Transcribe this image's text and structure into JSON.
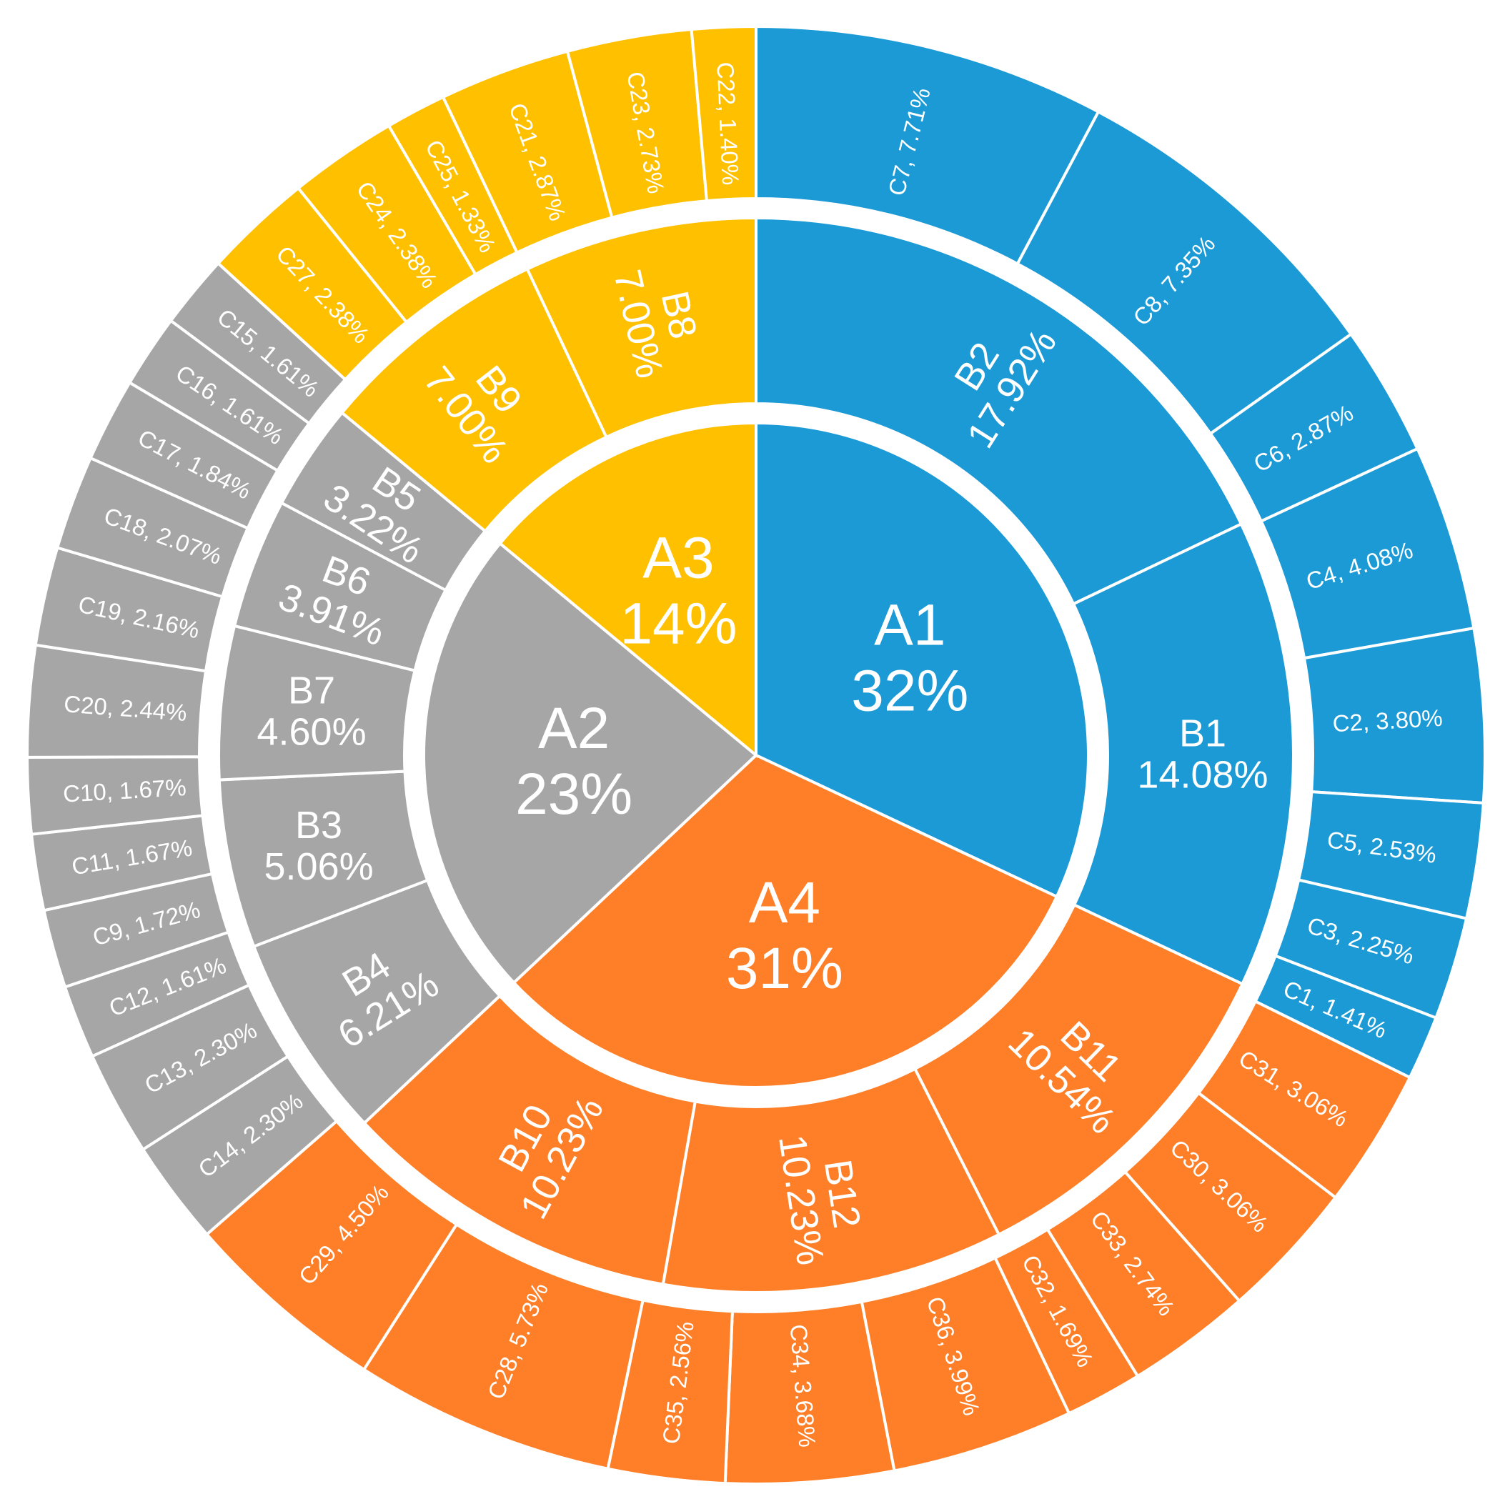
{
  "chart_data": {
    "type": "sunburst",
    "title": "",
    "colors": {
      "A1": "#1B9AD6",
      "A2": "#A6A6A6",
      "A3": "#FFC000",
      "A4": "#FE7F27"
    },
    "rings": {
      "inner": [
        {
          "label": "A1",
          "value_label": "32%",
          "value": 32
        },
        {
          "label": "A4",
          "value_label": "31%",
          "value": 31
        },
        {
          "label": "A2",
          "value_label": "23%",
          "value": 23
        },
        {
          "label": "A3",
          "value_label": "14%",
          "value": 14
        }
      ],
      "middle": [
        {
          "label": "B2",
          "value_label": "17.92%",
          "value": 17.92,
          "parent": "A1"
        },
        {
          "label": "B1",
          "value_label": "14.08%",
          "value": 14.08,
          "parent": "A1"
        },
        {
          "label": "B11",
          "value_label": "10.54%",
          "value": 10.54,
          "parent": "A4"
        },
        {
          "label": "B12",
          "value_label": "10.23%",
          "value": 10.23,
          "parent": "A4"
        },
        {
          "label": "B10",
          "value_label": "10.23%",
          "value": 10.23,
          "parent": "A4"
        },
        {
          "label": "B4",
          "value_label": "6.21%",
          "value": 6.21,
          "parent": "A2"
        },
        {
          "label": "B3",
          "value_label": "5.06%",
          "value": 5.06,
          "parent": "A2"
        },
        {
          "label": "B7",
          "value_label": "4.60%",
          "value": 4.6,
          "parent": "A2"
        },
        {
          "label": "B6",
          "value_label": "3.91%",
          "value": 3.91,
          "parent": "A2"
        },
        {
          "label": "B5",
          "value_label": "3.22%",
          "value": 3.22,
          "parent": "A2"
        },
        {
          "label": "B9",
          "value_label": "7.00%",
          "value": 7.0,
          "parent": "A3"
        },
        {
          "label": "B8",
          "value_label": "7.00%",
          "value": 7.0,
          "parent": "A3"
        }
      ],
      "outer": [
        {
          "label": "C7, 7.71%",
          "value": 7.71,
          "parent": "A1"
        },
        {
          "label": "C8, 7.35%",
          "value": 7.35,
          "parent": "A1"
        },
        {
          "label": "C6, 2.87%",
          "value": 2.87,
          "parent": "A1"
        },
        {
          "label": "C4, 4.08%",
          "value": 4.08,
          "parent": "A1"
        },
        {
          "label": "C2, 3.80%",
          "value": 3.8,
          "parent": "A1"
        },
        {
          "label": "C5, 2.53%",
          "value": 2.53,
          "parent": "A1"
        },
        {
          "label": "C3, 2.25%",
          "value": 2.25,
          "parent": "A1"
        },
        {
          "label": "C1, 1.41%",
          "value": 1.41,
          "parent": "A1"
        },
        {
          "label": "C31, 3.06%",
          "value": 3.06,
          "parent": "A4"
        },
        {
          "label": "C30, 3.06%",
          "value": 3.06,
          "parent": "A4"
        },
        {
          "label": "C33, 2.74%",
          "value": 2.74,
          "parent": "A4"
        },
        {
          "label": "C32, 1.69%",
          "value": 1.69,
          "parent": "A4"
        },
        {
          "label": "C36, 3.99%",
          "value": 3.99,
          "parent": "A4"
        },
        {
          "label": "C34, 3.68%",
          "value": 3.68,
          "parent": "A4"
        },
        {
          "label": "C35, 2.56%",
          "value": 2.56,
          "parent": "A4"
        },
        {
          "label": "C28, 5.73%",
          "value": 5.73,
          "parent": "A4"
        },
        {
          "label": "C29, 4.50%",
          "value": 4.5,
          "parent": "A4"
        },
        {
          "label": "C14, 2.30%",
          "value": 2.3,
          "parent": "A2"
        },
        {
          "label": "C13, 2.30%",
          "value": 2.3,
          "parent": "A2"
        },
        {
          "label": "C12, 1.61%",
          "value": 1.61,
          "parent": "A2"
        },
        {
          "label": "C9, 1.72%",
          "value": 1.72,
          "parent": "A2"
        },
        {
          "label": "C11, 1.67%",
          "value": 1.67,
          "parent": "A2"
        },
        {
          "label": "C10, 1.67%",
          "value": 1.67,
          "parent": "A2"
        },
        {
          "label": "C20, 2.44%",
          "value": 2.44,
          "parent": "A2"
        },
        {
          "label": "C19, 2.16%",
          "value": 2.16,
          "parent": "A2"
        },
        {
          "label": "C18, 2.07%",
          "value": 2.07,
          "parent": "A2"
        },
        {
          "label": "C17, 1.84%",
          "value": 1.84,
          "parent": "A2"
        },
        {
          "label": "C16, 1.61%",
          "value": 1.61,
          "parent": "A2"
        },
        {
          "label": "C15, 1.61%",
          "value": 1.61,
          "parent": "A2"
        },
        {
          "label": "C27, 2.38%",
          "value": 2.38,
          "parent": "A3"
        },
        {
          "label": "C24, 2.38%",
          "value": 2.38,
          "parent": "A3"
        },
        {
          "label": "C25, 1.33%",
          "value": 1.33,
          "parent": "A3"
        },
        {
          "label": "C21, 2.87%",
          "value": 2.87,
          "parent": "A3"
        },
        {
          "label": "C23, 2.73%",
          "value": 2.73,
          "parent": "A3"
        },
        {
          "label": "C22, 1.40%",
          "value": 1.4,
          "parent": "A3"
        }
      ]
    }
  }
}
